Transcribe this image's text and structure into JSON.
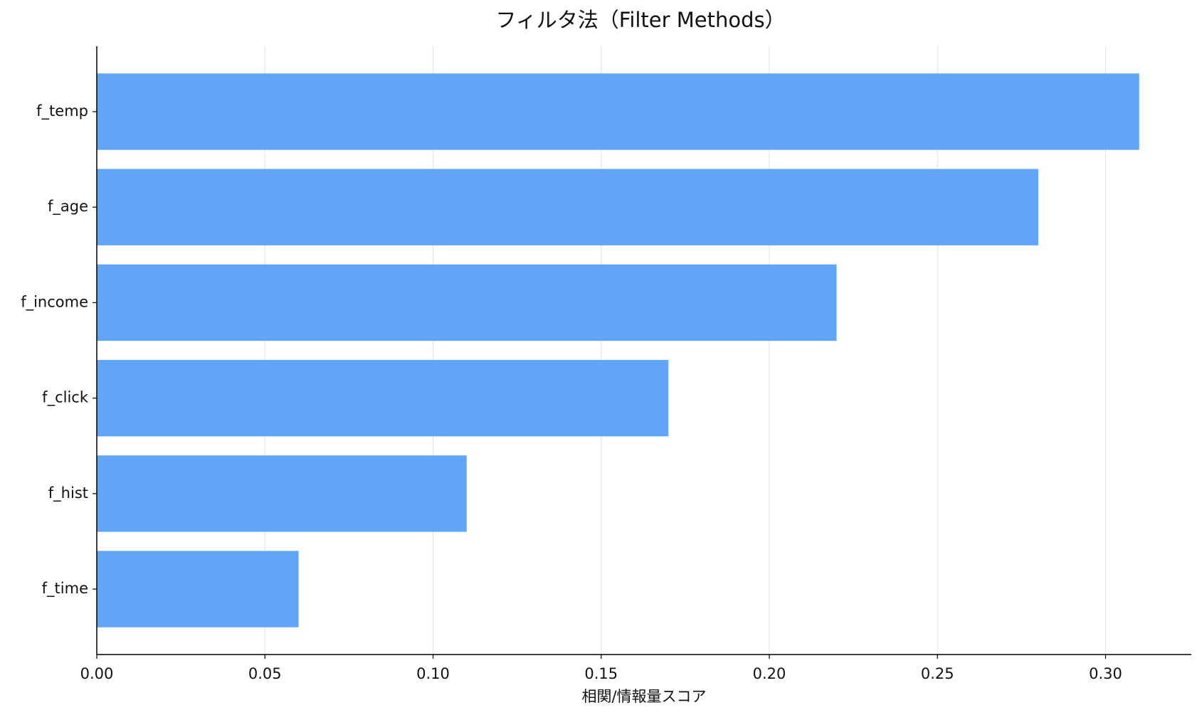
{
  "chart_data": {
    "type": "barh",
    "title": "フィルタ法（Filter Methods）",
    "x_label": "相関/情報量スコア",
    "categories": [
      "f_temp",
      "f_age",
      "f_income",
      "f_click",
      "f_hist",
      "f_time"
    ],
    "values": [
      0.31,
      0.28,
      0.22,
      0.17,
      0.11,
      0.06
    ],
    "color": "#60a5fa",
    "xlim": [
      0,
      0.3255
    ],
    "xticks": [
      {
        "value": 0,
        "label": "0.00"
      },
      {
        "value": 0.05,
        "label": "0.05"
      },
      {
        "value": 0.1,
        "label": "0.10"
      },
      {
        "value": 0.15,
        "label": "0.15"
      },
      {
        "value": 0.2,
        "label": "0.20"
      },
      {
        "value": 0.25,
        "label": "0.25"
      },
      {
        "value": 0.3,
        "label": "0.30"
      }
    ],
    "grid": true
  }
}
